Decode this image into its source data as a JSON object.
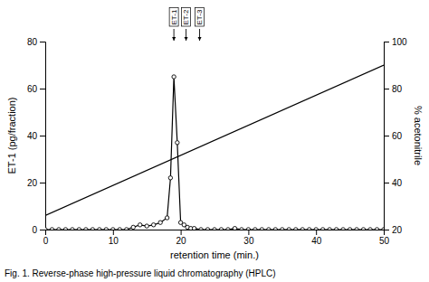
{
  "chart_data": {
    "type": "line",
    "x_label": "retention  time  (min.)",
    "y_label": "ET-1  (pg/fraction)",
    "y2_label": "% acetonitrile",
    "caption": "Fig. 1.  Reverse-phase  high-pressure  liquid  chromatography  (HPLC)",
    "xlim": [
      0,
      50
    ],
    "xticks": [
      0,
      10,
      20,
      30,
      40,
      50
    ],
    "ylim": [
      0,
      80
    ],
    "yticks": [
      0,
      20,
      40,
      60,
      80
    ],
    "y2lim": [
      20,
      100
    ],
    "y2ticks": [
      20,
      40,
      60,
      80,
      100
    ],
    "annotations": [
      {
        "x": 19.0,
        "text": "ET-1"
      },
      {
        "x": 20.8,
        "text": "ET-2"
      },
      {
        "x": 22.8,
        "text": "ET-3"
      }
    ],
    "series": [
      {
        "axis": "y2",
        "color": "#000000",
        "x": [
          0,
          50
        ],
        "values": [
          26,
          90
        ]
      },
      {
        "color": "#000000",
        "marker": "circle",
        "x": [
          0,
          1,
          2,
          3,
          4,
          5,
          6,
          7,
          8,
          9,
          10,
          11,
          12,
          13,
          14,
          15,
          16,
          17,
          18,
          18.5,
          19.0,
          19.5,
          20.0,
          20.5,
          21.0,
          21.5,
          22.0,
          23,
          24,
          25,
          26,
          27,
          28,
          29,
          30,
          31,
          32,
          33,
          34,
          35,
          36,
          37,
          38,
          39,
          40,
          41,
          42,
          43,
          44,
          45,
          46,
          47,
          48,
          49,
          50
        ],
        "values": [
          0,
          0,
          0,
          0,
          0,
          0,
          0,
          0,
          0,
          0,
          0,
          0,
          0,
          1,
          2,
          1.5,
          2,
          3,
          5,
          22,
          65,
          37,
          3,
          2,
          1,
          0.5,
          0.5,
          0,
          0,
          0,
          0,
          0,
          0.5,
          0,
          0,
          0,
          0,
          0,
          0,
          0,
          0,
          0,
          0,
          0,
          0,
          0,
          0,
          0,
          0,
          0,
          0,
          0,
          0,
          0,
          0
        ]
      }
    ]
  }
}
